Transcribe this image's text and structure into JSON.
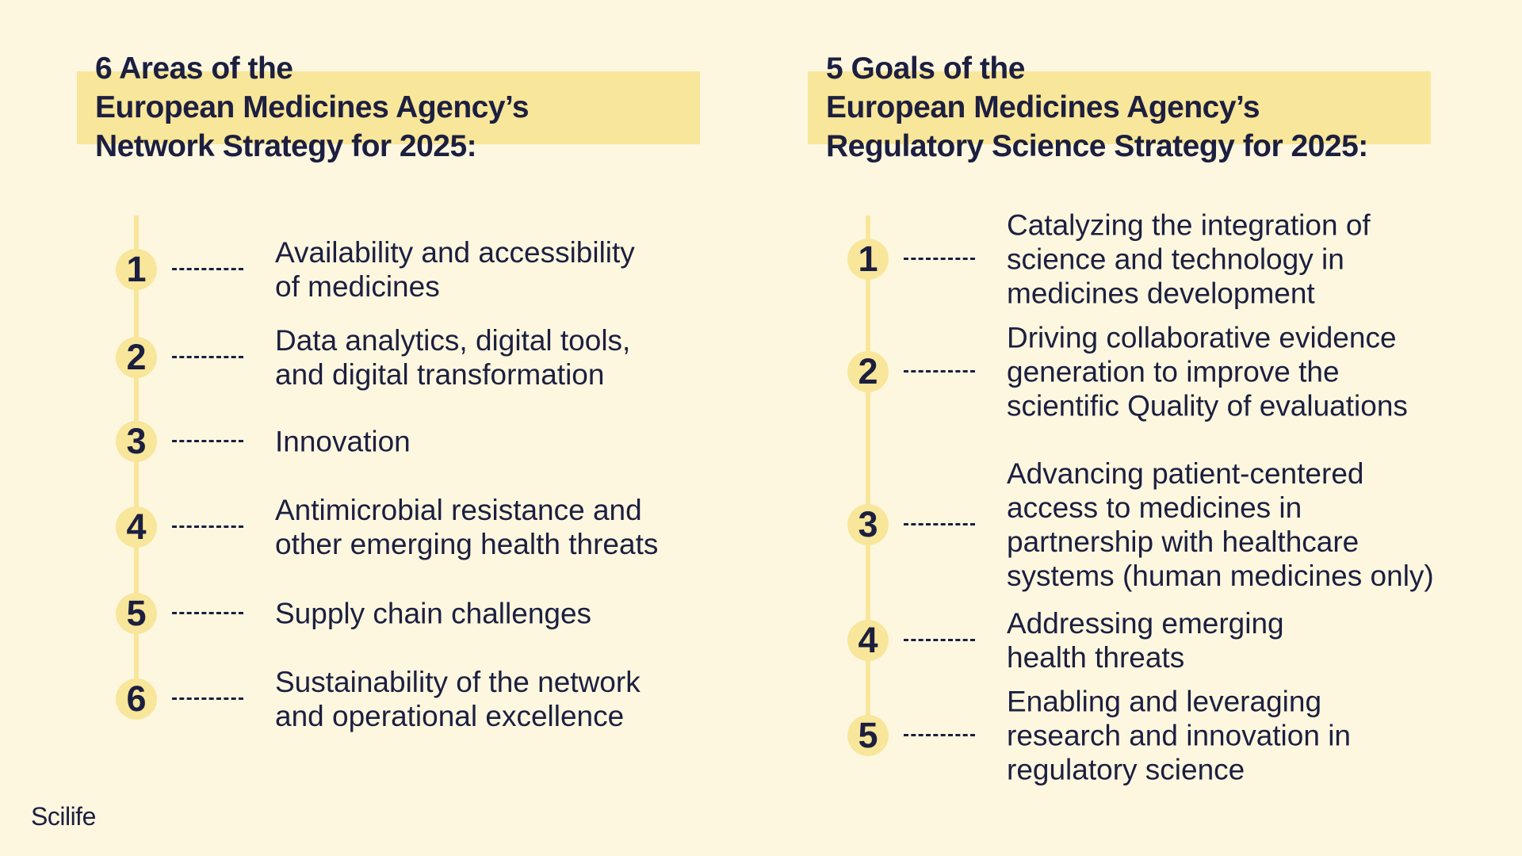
{
  "left_panel": {
    "title": "6 Areas of the\nEuropean Medicines Agency’s\nNetwork Strategy for 2025:",
    "items": [
      {
        "number": "1",
        "label": "Availability and accessibility\nof medicines"
      },
      {
        "number": "2",
        "label": "Data analytics, digital tools,\nand digital transformation"
      },
      {
        "number": "3",
        "label": "Innovation"
      },
      {
        "number": "4",
        "label": "Antimicrobial resistance and\nother emerging health threats"
      },
      {
        "number": "5",
        "label": "Supply chain challenges"
      },
      {
        "number": "6",
        "label": "Sustainability of the network\nand operational excellence"
      }
    ]
  },
  "right_panel": {
    "title": "5 Goals of the\nEuropean Medicines Agency’s\nRegulatory Science Strategy for 2025:",
    "items": [
      {
        "number": "1",
        "label": "Catalyzing the integration of\nscience and technology in\nmedicines development"
      },
      {
        "number": "2",
        "label": "Driving collaborative evidence\ngeneration to improve the\nscientific Quality of evaluations"
      },
      {
        "number": "3",
        "label": "Advancing patient-centered\naccess to medicines in\npartnership with healthcare\nsystems (human medicines only)"
      },
      {
        "number": "4",
        "label": "Addressing emerging\nhealth threats"
      },
      {
        "number": "5",
        "label": "Enabling and leveraging\nresearch and innovation in\nregulatory science"
      }
    ]
  },
  "brand": "Scilife",
  "colors": {
    "background": "#fdf7e0",
    "highlight": "#f8e69a",
    "text": "#1c1f3f"
  }
}
